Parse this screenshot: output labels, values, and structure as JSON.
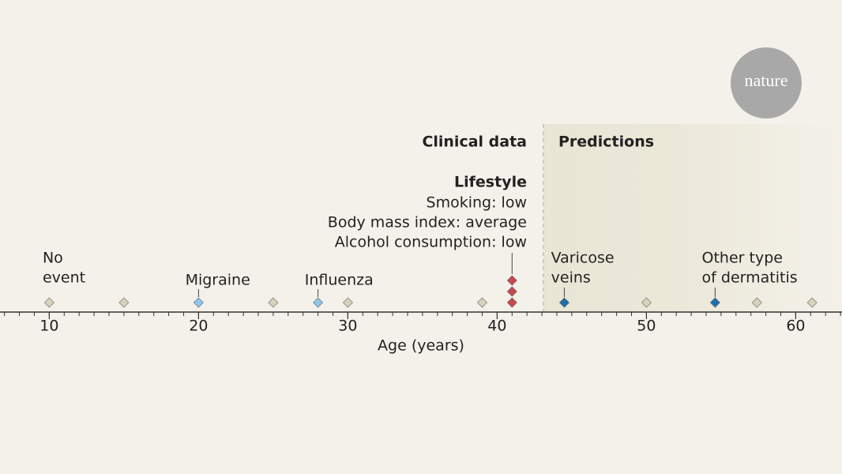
{
  "logo": "nature",
  "chart_data": {
    "type": "timeline",
    "x_label": "Age (years)",
    "xlim": [
      6.7,
      63.1
    ],
    "xticks": [
      10,
      20,
      30,
      40,
      50,
      60
    ],
    "xminorticks": [
      7,
      8,
      9,
      10,
      11,
      12,
      13,
      14,
      15,
      16,
      17,
      18,
      19,
      20,
      21,
      22,
      23,
      24,
      25,
      26,
      27,
      28,
      29,
      30,
      31,
      32,
      33,
      34,
      35,
      36,
      37,
      38,
      39,
      40,
      41,
      42,
      43,
      44,
      45,
      46,
      47,
      48,
      49,
      50,
      51,
      52,
      53,
      54,
      55,
      56,
      57,
      58,
      59,
      60,
      61,
      62,
      63
    ],
    "predictions_start": 43.1,
    "region_labels": [
      "Clinical data",
      "Predictions"
    ],
    "lifestyle": {
      "title": "Lifestyle",
      "lines": [
        "Smoking: low",
        "Body mass index: average",
        "Alcohol consumption: low"
      ],
      "x": 41
    },
    "events": [
      {
        "x": 10,
        "color": "#d9d4b9",
        "label": [
          "No",
          "event"
        ]
      },
      {
        "x": 15,
        "color": "#d9d4b9"
      },
      {
        "x": 20,
        "color": "#8fc6ec",
        "label": [
          "Migraine"
        ]
      },
      {
        "x": 25,
        "color": "#d9d4b9"
      },
      {
        "x": 28,
        "color": "#8fc6ec",
        "label": [
          "Influenza"
        ]
      },
      {
        "x": 30,
        "color": "#d9d4b9"
      },
      {
        "x": 39,
        "color": "#d9d4b9"
      },
      {
        "x": 41,
        "color": "#c9464b"
      },
      {
        "x": 41,
        "color": "#c9464b"
      },
      {
        "x": 41,
        "color": "#c9464b"
      },
      {
        "x": 44.5,
        "color": "#1f6eae",
        "label": [
          "Varicose",
          "veins"
        ]
      },
      {
        "x": 50,
        "color": "#d9d4b9"
      },
      {
        "x": 54.6,
        "color": "#1f6eae",
        "label": [
          "Other type",
          "of dermatitis"
        ]
      },
      {
        "x": 57.4,
        "color": "#d9d4b9"
      },
      {
        "x": 61.1,
        "color": "#d9d4b9"
      }
    ]
  }
}
